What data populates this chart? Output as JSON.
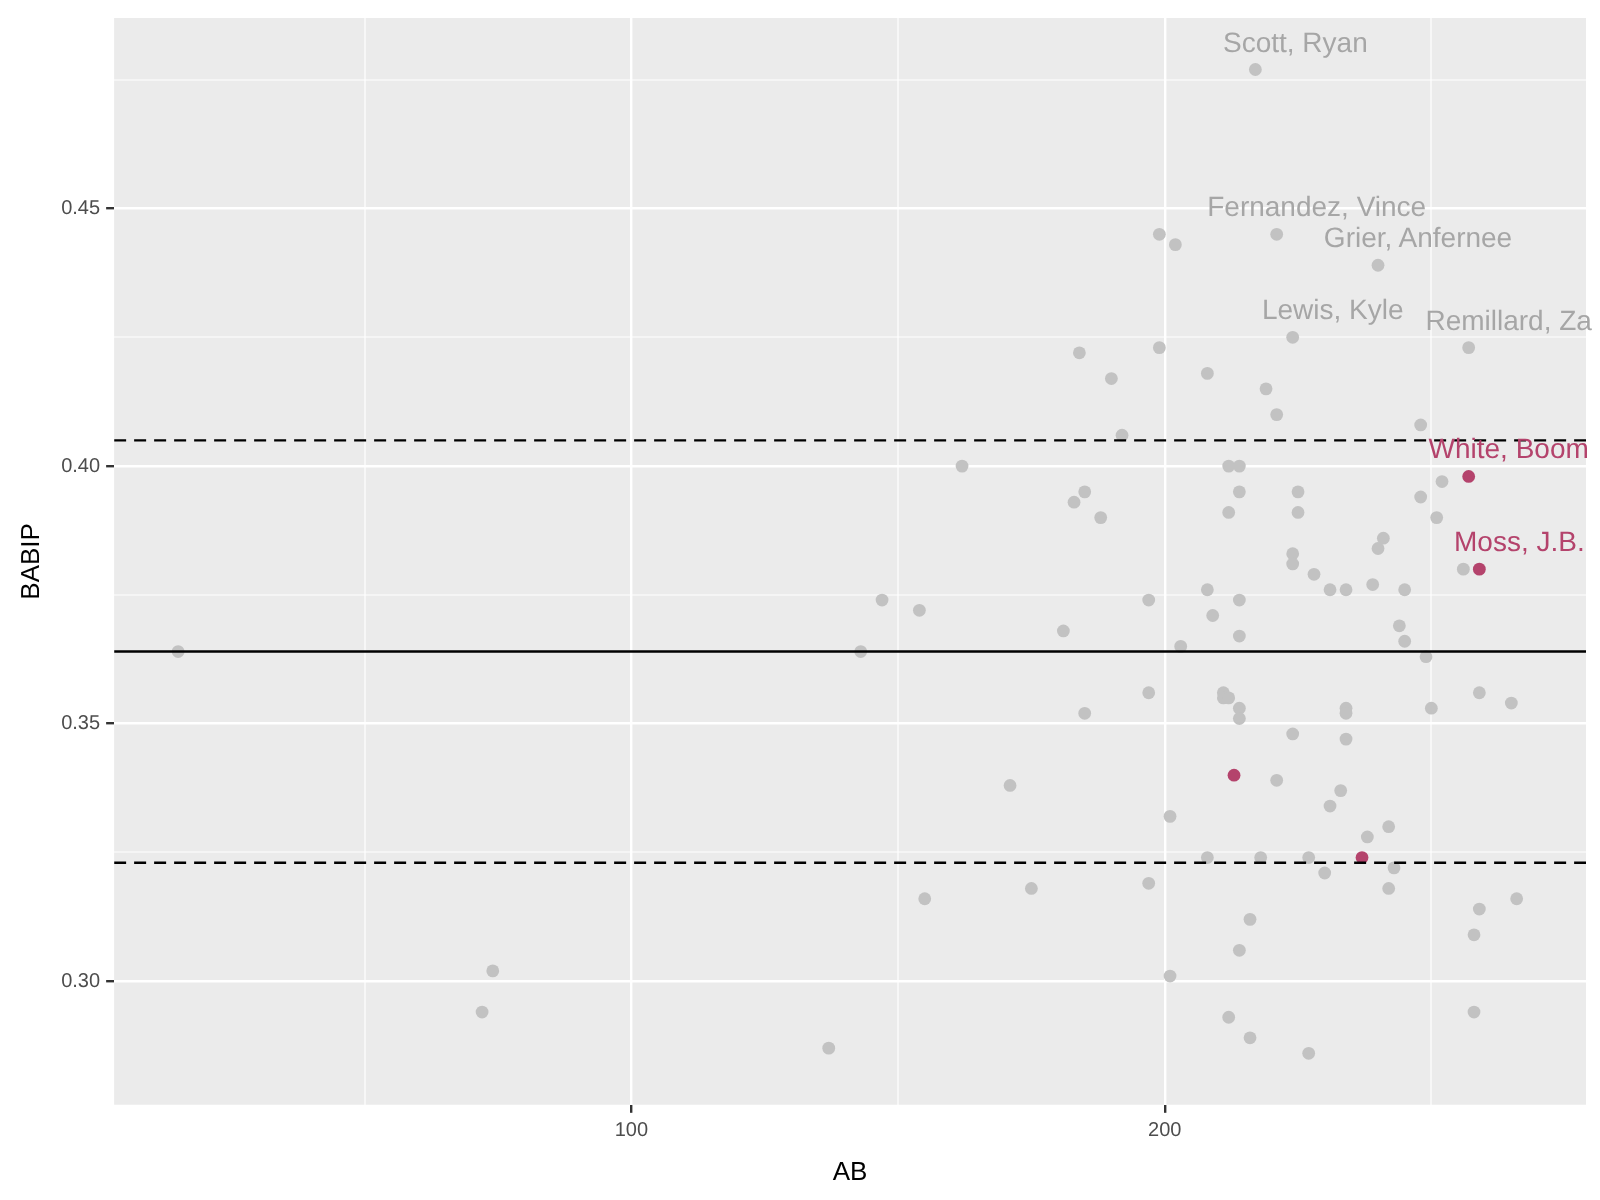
{
  "chart_data": {
    "type": "scatter",
    "xlabel": "AB",
    "ylabel": "BABIP",
    "xlim": [
      3,
      279
    ],
    "ylim": [
      0.276,
      0.487
    ],
    "xticks": [
      {
        "value": 50,
        "label": null
      },
      100,
      {
        "value": 150,
        "label": null
      },
      200,
      {
        "value": 250,
        "label": null
      }
    ],
    "yticks": [
      {
        "value": 0.3,
        "label": "0.30"
      },
      {
        "value": 0.325,
        "label": null
      },
      {
        "value": 0.35,
        "label": "0.35"
      },
      {
        "value": 0.375,
        "label": null
      },
      {
        "value": 0.4,
        "label": "0.40"
      },
      {
        "value": 0.425,
        "label": null
      },
      {
        "value": 0.45,
        "label": "0.45"
      },
      {
        "value": 0.475,
        "label": null
      }
    ],
    "grid": true,
    "legend": false,
    "marker": "circle",
    "series": [
      {
        "color": "#c2c2c2",
        "x": [
          15,
          74,
          72,
          137,
          143,
          147,
          154,
          155,
          162,
          171,
          175,
          181,
          184,
          183,
          185,
          188,
          190,
          192,
          185,
          197,
          197,
          197,
          199,
          202,
          199,
          201,
          201,
          203,
          208,
          208,
          208,
          209,
          211,
          211,
          212,
          214,
          212,
          214,
          212,
          214,
          214,
          214,
          214,
          214,
          212,
          216,
          216,
          217,
          218,
          219,
          221,
          221,
          221,
          224,
          224,
          224,
          224,
          225,
          225,
          227,
          227,
          228,
          230,
          231,
          231,
          233,
          234,
          234,
          234,
          234,
          238,
          239,
          240,
          240,
          241,
          242,
          242,
          243,
          244,
          245,
          245,
          248,
          248,
          249,
          250,
          251,
          252,
          256,
          257,
          258,
          258,
          259,
          259,
          265,
          266
        ],
        "values": [
          0.364,
          0.302,
          0.294,
          0.287,
          0.364,
          0.374,
          0.372,
          0.316,
          0.4,
          0.338,
          0.318,
          0.368,
          0.422,
          0.393,
          0.395,
          0.39,
          0.417,
          0.406,
          0.352,
          0.374,
          0.356,
          0.319,
          0.445,
          0.443,
          0.423,
          0.332,
          0.301,
          0.365,
          0.376,
          0.324,
          0.418,
          0.371,
          0.356,
          0.355,
          0.4,
          0.4,
          0.391,
          0.395,
          0.355,
          0.353,
          0.351,
          0.374,
          0.367,
          0.306,
          0.293,
          0.312,
          0.289,
          0.477,
          0.324,
          0.415,
          0.41,
          0.445,
          0.339,
          0.383,
          0.381,
          0.425,
          0.348,
          0.395,
          0.391,
          0.324,
          0.286,
          0.379,
          0.321,
          0.376,
          0.334,
          0.337,
          0.376,
          0.347,
          0.353,
          0.352,
          0.328,
          0.377,
          0.439,
          0.384,
          0.386,
          0.33,
          0.318,
          0.322,
          0.369,
          0.376,
          0.366,
          0.408,
          0.394,
          0.363,
          0.353,
          0.39,
          0.397,
          0.38,
          0.423,
          0.309,
          0.294,
          0.356,
          0.314,
          0.354,
          0.316
        ]
      },
      {
        "color": "#b4436c",
        "x": [
          213,
          237,
          257,
          259
        ],
        "values": [
          0.34,
          0.324,
          0.398,
          0.38
        ]
      }
    ],
    "ref_lines": [
      {
        "axis": "y",
        "value": 0.364,
        "color": "#000000",
        "line_style": "solid"
      },
      {
        "axis": "y",
        "value": 0.405,
        "color": "#000000",
        "line_style": "dashed"
      },
      {
        "axis": "y",
        "value": 0.323,
        "color": "#000000",
        "line_style": "dashed"
      }
    ],
    "annotations": [
      {
        "text": "Scott, Ryan",
        "x": 217,
        "y": 0.477
      },
      {
        "text": "Fernandez, Vince",
        "x": 221,
        "y": 0.445
      },
      {
        "text": "Grier, Anfernee",
        "x": 240,
        "y": 0.439
      },
      {
        "text": "Lewis, Kyle",
        "x": 224,
        "y": 0.425
      },
      {
        "text": "Remillard, Za",
        "x": 257,
        "y": 0.423
      },
      {
        "text": "White, Boom",
        "x": 257,
        "y": 0.398
      },
      {
        "text": "Moss, J.B.",
        "x": 259,
        "y": 0.38
      }
    ]
  }
}
